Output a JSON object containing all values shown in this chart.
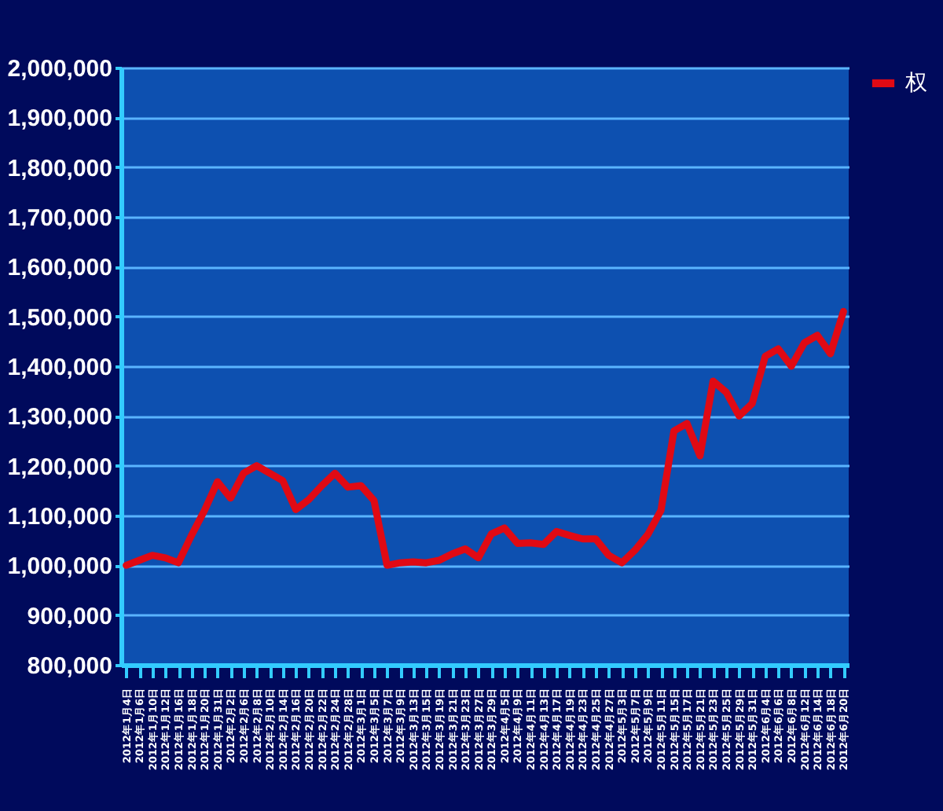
{
  "chart_data": {
    "type": "line",
    "categories": [
      "2012年1月4日",
      "2012年1月6日",
      "2012年1月10日",
      "2012年1月12日",
      "2012年1月16日",
      "2012年1月18日",
      "2012年1月20日",
      "2012年1月31日",
      "2012年2月2日",
      "2012年2月6日",
      "2012年2月8日",
      "2012年2月10日",
      "2012年2月14日",
      "2012年2月16日",
      "2012年2月20日",
      "2012年2月22日",
      "2012年2月24日",
      "2012年2月28日",
      "2012年3月1日",
      "2012年3月5日",
      "2012年3月7日",
      "2012年3月9日",
      "2012年3月13日",
      "2012年3月15日",
      "2012年3月19日",
      "2012年3月21日",
      "2012年3月23日",
      "2012年3月27日",
      "2012年3月29日",
      "2012年4月5日",
      "2012年4月9日",
      "2012年4月11日",
      "2012年4月13日",
      "2012年4月17日",
      "2012年4月19日",
      "2012年4月23日",
      "2012年4月25日",
      "2012年4月27日",
      "2012年5月3日",
      "2012年5月7日",
      "2012年5月9日",
      "2012年5月11日",
      "2012年5月15日",
      "2012年5月17日",
      "2012年5月21日",
      "2012年5月23日",
      "2012年5月25日",
      "2012年5月29日",
      "2012年5月31日",
      "2012年6月4日",
      "2012年6月6日",
      "2012年6月8日",
      "2012年6月12日",
      "2012年6月14日",
      "2012年6月18日",
      "2012年6月20日"
    ],
    "series": [
      {
        "name": "权",
        "color": "#e00a14",
        "values": [
          1000000,
          1010000,
          1020000,
          1015000,
          1005000,
          1060000,
          1110000,
          1168000,
          1135000,
          1185000,
          1200000,
          1185000,
          1170000,
          1112000,
          1132000,
          1160000,
          1185000,
          1157000,
          1160000,
          1130000,
          1000000,
          1005000,
          1007000,
          1005000,
          1010000,
          1023000,
          1033000,
          1015000,
          1063000,
          1075000,
          1044000,
          1045000,
          1042000,
          1068000,
          1060000,
          1053000,
          1053000,
          1020000,
          1005000,
          1030000,
          1062000,
          1110000,
          1270000,
          1285000,
          1220000,
          1370000,
          1348000,
          1300000,
          1325000,
          1420000,
          1435000,
          1400000,
          1447000,
          1462000,
          1425000,
          1510000
        ]
      }
    ],
    "ylim": [
      800000,
      2000000
    ],
    "yticks": [
      {
        "value": 800000,
        "label": "800,000"
      },
      {
        "value": 900000,
        "label": "900,000"
      },
      {
        "value": 1000000,
        "label": "1,000,000"
      },
      {
        "value": 1100000,
        "label": "1,100,000"
      },
      {
        "value": 1200000,
        "label": "1,200,000"
      },
      {
        "value": 1300000,
        "label": "1,300,000"
      },
      {
        "value": 1400000,
        "label": "1,400,000"
      },
      {
        "value": 1500000,
        "label": "1,500,000"
      },
      {
        "value": 1600000,
        "label": "1,600,000"
      },
      {
        "value": 1700000,
        "label": "1,700,000"
      },
      {
        "value": 1800000,
        "label": "1,800,000"
      },
      {
        "value": 1900000,
        "label": "1,900,000"
      },
      {
        "value": 2000000,
        "label": "2,000,000"
      }
    ],
    "grid": "y",
    "legend": "right",
    "marker": "none",
    "line_style": "solid"
  }
}
